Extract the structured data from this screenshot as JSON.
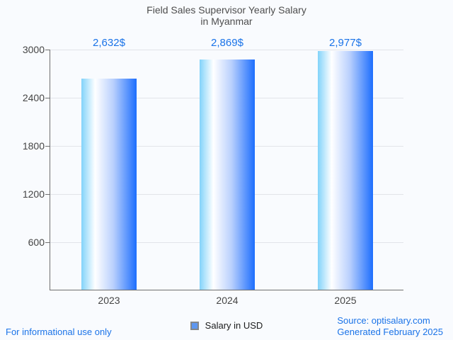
{
  "title": {
    "line1": "Field Sales Supervisor Yearly Salary",
    "line2": "in Myanmar"
  },
  "chart_data": {
    "type": "bar",
    "title": "Field Sales Supervisor Yearly Salary in Myanmar",
    "categories": [
      "2023",
      "2024",
      "2025"
    ],
    "series": [
      {
        "name": "Salary in USD",
        "values": [
          2632,
          2869,
          2977
        ]
      }
    ],
    "value_labels": [
      "2,632$",
      "2,869$",
      "2,977$"
    ],
    "xlabel": "",
    "ylabel": "",
    "ylim": [
      0,
      3000
    ],
    "yticks": [
      600,
      1200,
      1800,
      2400,
      3000
    ],
    "grid": "horizontal",
    "legend_position": "bottom-center"
  },
  "legend": {
    "label": "Salary in USD",
    "marker_fill": "#5e97f0"
  },
  "footer": {
    "left": "For informational use only",
    "source": "Source: optisalary.com",
    "generated": "Generated February 2025"
  },
  "colors": {
    "accent_blue": "#1a73e8",
    "title_gray": "#4d4d4d",
    "axis_gray": "#6f6f6f",
    "gridline": "#e2e4e9",
    "background": "#f9fbfe",
    "bar_gradient_left": "#82d3fa",
    "bar_gradient_highlight": "#ffffff",
    "bar_gradient_right": "#1d6efd"
  }
}
